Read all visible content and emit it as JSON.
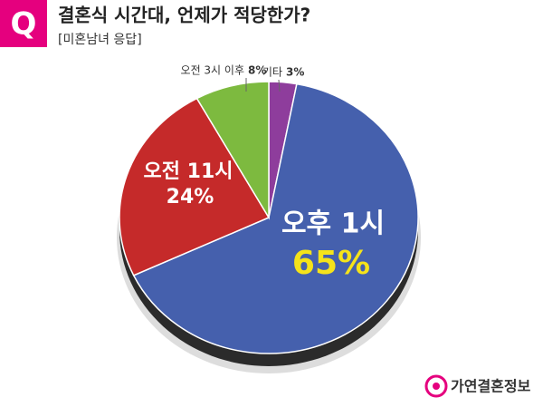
{
  "badge": "Q",
  "chart_data": {
    "type": "pie",
    "title": "결혼식 시간대, 언제가 적당한가?",
    "subtitle": "[미혼남녀 응답]",
    "categories": [
      "기타",
      "오후 1시",
      "오전 11시",
      "오전 3시 이후"
    ],
    "values": [
      3,
      65,
      24,
      8
    ],
    "value_labels": [
      "3%",
      "65%",
      "24%",
      "8%"
    ],
    "colors": [
      "#8e3d9c",
      "#4560ad",
      "#c52a2a",
      "#7dba3f"
    ]
  },
  "footer": {
    "brand": "가연결혼정보"
  }
}
